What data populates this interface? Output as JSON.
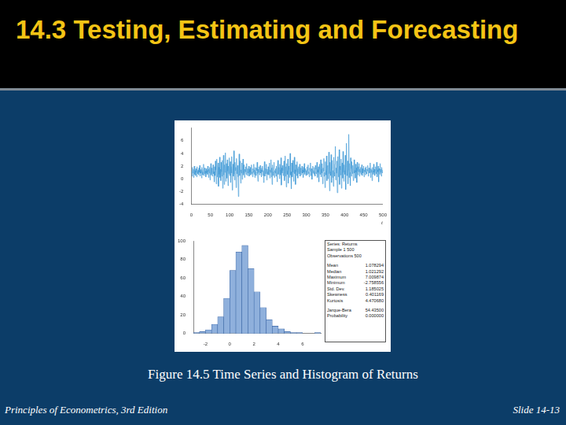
{
  "page": {
    "title": "14.3 Testing, Estimating and Forecasting",
    "caption": "Figure 14.5 Time Series and Histogram of Returns",
    "footer_left": "Principles of Econometrics, 3rd Edition",
    "footer_right": "Slide 14-13",
    "stats_box": {
      "header": [
        "Series: Returns",
        "Sample 1 500",
        "Observations 500"
      ],
      "rows": [
        [
          "Mean",
          "1.078294"
        ],
        [
          "Median",
          "1.021292"
        ],
        [
          "Maximum",
          "7.009874"
        ],
        [
          "Minimum",
          "-2.758556"
        ],
        [
          "Std. Dev.",
          "1.185025"
        ],
        [
          "Skewness",
          "0.401169"
        ],
        [
          "Kurtosis",
          "4.470680"
        ]
      ],
      "footer_rows": [
        [
          "Jarque-Bera",
          "54.43500"
        ],
        [
          "Probability",
          "0.000000"
        ]
      ]
    }
  },
  "chart_data": [
    {
      "type": "line",
      "xlabel": "t",
      "color": "#4a9fd8",
      "grid": false,
      "xlim": [
        0,
        500
      ],
      "xticks": [
        0,
        50,
        100,
        150,
        200,
        250,
        300,
        350,
        400,
        450,
        500
      ],
      "ylim": [
        -4,
        8
      ],
      "yticks": [
        -4,
        -2,
        0,
        2,
        4,
        6
      ],
      "x": [
        1,
        2,
        3,
        4,
        5,
        6,
        7,
        8,
        9,
        10,
        11,
        12,
        13,
        14,
        15,
        16,
        17,
        18,
        19,
        20,
        21,
        22,
        23,
        24,
        25,
        26,
        27,
        28,
        29,
        30,
        31,
        32,
        33,
        34,
        35,
        36,
        37,
        38,
        39,
        40,
        41,
        42,
        43,
        44,
        45,
        46,
        47,
        48,
        49,
        50,
        51,
        52,
        53,
        54,
        55,
        56,
        57,
        58,
        59,
        60,
        61,
        62,
        63,
        64,
        65,
        66,
        67,
        68,
        69,
        70,
        71,
        72,
        73,
        74,
        75,
        76,
        77,
        78,
        79,
        80,
        81,
        82,
        83,
        84,
        85,
        86,
        87,
        88,
        89,
        90,
        91,
        92,
        93,
        94,
        95,
        96,
        97,
        98,
        99,
        100,
        101,
        102,
        103,
        104,
        105,
        106,
        107,
        108,
        109,
        110,
        111,
        112,
        113,
        114,
        115,
        116,
        117,
        118,
        119,
        120,
        121,
        122,
        123,
        124,
        125,
        126,
        127,
        128,
        129,
        130,
        131,
        132,
        133,
        134,
        135,
        136,
        137,
        138,
        139,
        140,
        141,
        142,
        143,
        144,
        145,
        146,
        147,
        148,
        149,
        150,
        151,
        152,
        153,
        154,
        155,
        156,
        157,
        158,
        159,
        160,
        161,
        162,
        163,
        164,
        165,
        166,
        167,
        168,
        169,
        170,
        171,
        172,
        173,
        174,
        175,
        176,
        177,
        178,
        179,
        180,
        181,
        182,
        183,
        184,
        185,
        186,
        187,
        188,
        189,
        190,
        191,
        192,
        193,
        194,
        195,
        196,
        197,
        198,
        199,
        200,
        201,
        202,
        203,
        204,
        205,
        206,
        207,
        208,
        209,
        210,
        211,
        212,
        213,
        214,
        215,
        216,
        217,
        218,
        219,
        220,
        221,
        222,
        223,
        224,
        225,
        226,
        227,
        228,
        229,
        230,
        231,
        232,
        233,
        234,
        235,
        236,
        237,
        238,
        239,
        240,
        241,
        242,
        243,
        244,
        245,
        246,
        247,
        248,
        249,
        250,
        251,
        252,
        253,
        254,
        255,
        256,
        257,
        258,
        259,
        260,
        261,
        262,
        263,
        264,
        265,
        266,
        267,
        268,
        269,
        270,
        271,
        272,
        273,
        274,
        275,
        276,
        277,
        278,
        279,
        280,
        281,
        282,
        283,
        284,
        285,
        286,
        287,
        288,
        289,
        290,
        291,
        292,
        293,
        294,
        295,
        296,
        297,
        298,
        299,
        300,
        301,
        302,
        303,
        304,
        305,
        306,
        307,
        308,
        309,
        310,
        311,
        312,
        313,
        314,
        315,
        316,
        317,
        318,
        319,
        320,
        321,
        322,
        323,
        324,
        325,
        326,
        327,
        328,
        329,
        330,
        331,
        332,
        333,
        334,
        335,
        336,
        337,
        338,
        339,
        340,
        341,
        342,
        343,
        344,
        345,
        346,
        347,
        348,
        349,
        350,
        351,
        352,
        353,
        354,
        355,
        356,
        357,
        358,
        359,
        360,
        361,
        362,
        363,
        364,
        365,
        366,
        367,
        368,
        369,
        370,
        371,
        372,
        373,
        374,
        375,
        376,
        377,
        378,
        379,
        380,
        381,
        382,
        383,
        384,
        385,
        386,
        387,
        388,
        389,
        390,
        391,
        392,
        393,
        394,
        395,
        396,
        397,
        398,
        399,
        400,
        401,
        402,
        403,
        404,
        405,
        406,
        407,
        408,
        409,
        410,
        411,
        412,
        413,
        414,
        415,
        416,
        417,
        418,
        419,
        420,
        421,
        422,
        423,
        424,
        425,
        426,
        427,
        428,
        429,
        430,
        431,
        432,
        433,
        434,
        435,
        436,
        437,
        438,
        439,
        440,
        441,
        442,
        443,
        444,
        445,
        446,
        447,
        448,
        449,
        450,
        451,
        452,
        453,
        454,
        455,
        456,
        457,
        458,
        459,
        460,
        461,
        462,
        463,
        464,
        465,
        466,
        467,
        468,
        469,
        470,
        471,
        472,
        473,
        474,
        475,
        476,
        477,
        478,
        479,
        480,
        481,
        482,
        483,
        484,
        485,
        486,
        487,
        488,
        489,
        490,
        491,
        492,
        493,
        494,
        495,
        496,
        497,
        498,
        499,
        500
      ],
      "values": [
        1.2,
        0.4,
        1.8,
        0.9,
        1.5,
        0.2,
        1.1,
        2.0,
        0.7,
        1.3,
        0.5,
        1.6,
        1.0,
        0.3,
        1.9,
        1.2,
        0.8,
        1.4,
        0.6,
        1.7,
        1.0,
        2.1,
        0.4,
        1.3,
        0.9,
        1.5,
        0.1,
        1.8,
        1.1,
        0.6,
        1.4,
        2.3,
        0.5,
        1.0,
        1.7,
        0.8,
        1.2,
        0.3,
        1.6,
        0.9,
        1.3,
        0.7,
        2.0,
        1.1,
        0.2,
        1.5,
        0.9,
        1.8,
        -0.2,
        1.2,
        2.4,
        0.6,
        1.0,
        1.7,
        0.4,
        1.3,
        2.2,
        0.8,
        1.1,
        -0.5,
        1.9,
        0.5,
        2.8,
        1.4,
        -0.8,
        1.0,
        3.1,
        0.3,
        1.6,
        2.5,
        -1.2,
        1.8,
        0.7,
        3.4,
        0.2,
        1.5,
        -0.3,
        2.6,
        1.1,
        0.4,
        2.9,
        -1.5,
        1.3,
        3.7,
        0.6,
        -0.9,
        2.2,
        1.0,
        4.1,
        -0.4,
        1.7,
        2.4,
        0.1,
        3.0,
        1.2,
        -1.1,
        2.0,
        0.8,
        3.3,
        0.5,
        1.4,
        2.7,
        -0.6,
        1.9,
        0.9,
        3.5,
        -1.8,
        1.1,
        2.3,
        0.4,
        4.4,
        0.7,
        -0.2,
        2.6,
        1.3,
        1.8,
        -1.4,
        3.2,
        0.8,
        1.5,
        2.1,
        0.3,
        -2.8,
        1.6,
        3.9,
        0.5,
        1.2,
        2.8,
        -0.7,
        1.4,
        0.9,
        2.5,
        -0.1,
        1.7,
        3.1,
        0.6,
        1.0,
        2.2,
        0.2,
        1.5,
        1.1,
        1.9,
        0.7,
        1.3,
        2.4,
        0.5,
        1.6,
        0.9,
        1.2,
        2.0,
        0.4,
        1.5,
        1.0,
        1.8,
        0.6,
        1.3,
        2.2,
        0.8,
        1.1,
        0.3,
        1.6,
        1.0,
        2.3,
        0.7,
        1.4,
        0.2,
        1.8,
        1.1,
        0.5,
        1.7,
        1.3,
        2.6,
        0.8,
        -0.4,
        1.5,
        1.0,
        1.9,
        0.6,
        1.2,
        2.1,
        0.9,
        1.4,
        0.3,
        1.7,
        1.1,
        2.0,
        0.5,
        1.3,
        -0.6,
        1.8,
        2.7,
        0.4,
        1.0,
        1.6,
        0.8,
        2.3,
        -0.2,
        1.5,
        1.1,
        0.7,
        1.9,
        0.6,
        1.2,
        2.5,
        0.1,
        1.4,
        1.0,
        3.0,
        0.3,
        1.7,
        -0.9,
        2.2,
        1.1,
        0.5,
        1.8,
        2.6,
        0.2,
        1.3,
        0.9,
        1.6,
        0.4,
        2.0,
        1.2,
        -0.5,
        1.5,
        2.9,
        0.7,
        1.1,
        1.8,
        0.0,
        2.3,
        1.4,
        0.6,
        3.3,
        -1.0,
        1.7,
        0.9,
        2.1,
        1.3,
        0.5,
        1.6,
        2.8,
        -0.3,
        1.0,
        3.6,
        0.4,
        1.9,
        -1.3,
        2.4,
        1.2,
        0.7,
        3.1,
        -0.7,
        1.5,
        2.0,
        0.2,
        1.8,
        4.0,
        0.6,
        1.1,
        -1.6,
        2.5,
        1.3,
        0.3,
        2.9,
        1.0,
        -0.4,
        1.7,
        3.4,
        0.8,
        1.4,
        -0.9,
        2.2,
        1.1,
        0.5,
        2.7,
        1.6,
        0.1,
        1.2,
        1.9,
        0.8,
        1.5,
        2.3,
        0.4,
        1.1,
        1.7,
        0.6,
        1.3,
        2.0,
        0.9,
        1.4,
        0.2,
        1.8,
        1.0,
        2.4,
        0.7,
        1.2,
        1.6,
        0.5,
        1.3,
        1.0,
        1.9,
        0.6,
        1.4,
        2.2,
        0.8,
        1.1,
        0.3,
        1.7,
        1.2,
        2.5,
        0.5,
        1.0,
        1.6,
        -0.1,
        1.4,
        2.0,
        0.9,
        1.3,
        0.7,
        1.8,
        1.1,
        0.4,
        2.1,
        1.5,
        0.8,
        1.2,
        2.6,
        0.2,
        1.4,
        1.0,
        1.9,
        -0.5,
        1.6,
        2.3,
        0.7,
        1.1,
        3.0,
        0.3,
        1.5,
        0.9,
        2.4,
        -0.8,
        1.7,
        1.2,
        3.2,
        0.4,
        1.0,
        -1.4,
        2.7,
        1.3,
        0.6,
        3.6,
        -0.3,
        1.9,
        2.1,
        0.0,
        1.4,
        4.2,
        0.8,
        -1.9,
        2.6,
        1.1,
        0.5,
        3.8,
        -0.6,
        1.6,
        2.9,
        0.2,
        1.3,
        -1.2,
        3.4,
        1.0,
        0.4,
        2.3,
        5.1,
        -0.2,
        1.7,
        0.9,
        2.8,
        -2.2,
        1.5,
        3.5,
        0.3,
        1.2,
        4.6,
        -0.9,
        2.0,
        1.4,
        0.6,
        3.1,
        -1.5,
        1.8,
        2.5,
        0.1,
        4.3,
        1.0,
        -0.4,
        2.2,
        1.3,
        0.7,
        3.7,
        -1.7,
        1.9,
        5.6,
        0.5,
        1.1,
        2.8,
        -0.8,
        1.4,
        7.0,
        0.2,
        2.4,
        1.0,
        -1.1,
        3.3,
        1.6,
        0.4,
        2.7,
        1.2,
        0.8,
        2.1,
        -0.3,
        1.5,
        3.0,
        0.9,
        1.3,
        0.1,
        2.3,
        1.0,
        1.7,
        -0.6,
        2.6,
        1.2,
        0.6,
        1.9,
        1.1,
        2.4,
        0.4,
        1.5,
        1.0,
        1.8,
        0.7,
        1.3,
        2.2,
        0.5,
        1.6,
        0.9,
        1.2,
        2.0,
        0.3,
        1.4,
        1.1,
        1.7,
        0.6,
        1.9,
        1.0,
        0.8,
        1.5,
        1.2,
        2.1,
        0.4,
        1.3,
        1.7,
        0.9,
        1.1,
        2.5,
        0.2,
        1.6,
        1.0,
        1.4,
        -0.3,
        1.8,
        1.2,
        0.7,
        2.3,
        1.0,
        1.5,
        0.5,
        1.3,
        1.9,
        0.8,
        1.2,
        2.6,
        0.3,
        1.4,
        1.1,
        2.0,
        -0.5,
        1.6,
        1.3,
        0.7,
        2.4,
        1.0,
        1.5,
        0.4,
        1.8,
        1.2,
        0.9,
        1.4
      ]
    },
    {
      "type": "histogram",
      "color": "#8fb0dc",
      "grid": false,
      "bins": [
        -3,
        -2.5,
        -2,
        -1.5,
        -1,
        -0.5,
        0,
        0.5,
        1,
        1.5,
        2,
        2.5,
        3,
        3.5,
        4,
        4.5,
        5,
        5.5,
        6,
        6.5,
        7,
        7.5
      ],
      "values": [
        1,
        2,
        4,
        10,
        18,
        38,
        68,
        88,
        95,
        70,
        45,
        28,
        15,
        8,
        5,
        2,
        1,
        1,
        0,
        0,
        1
      ],
      "xlim": [
        -3,
        7.5
      ],
      "xticks": [
        -2,
        0,
        2,
        4,
        6
      ],
      "ylim": [
        0,
        100
      ],
      "yticks": [
        0,
        20,
        40,
        60,
        80,
        100
      ]
    }
  ]
}
